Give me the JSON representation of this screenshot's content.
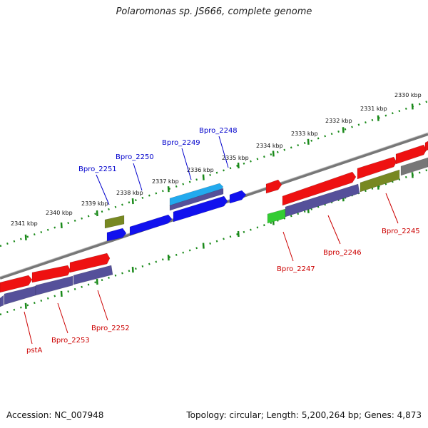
{
  "title": "Polaromonas sp. JS666, complete genome",
  "footer": {
    "accession": "Accession: NC_007948",
    "stats": "Topology: circular; Length: 5,200,264 bp; Genes: 4,873"
  },
  "colors": {
    "label_forward": "#0000cc",
    "label_reverse": "#cc0000",
    "cds_red": "#ee1111",
    "cds_blue": "#1111ee",
    "cds_cyan": "#22aaee",
    "cds_olive": "#778822",
    "cds_green": "#33cc33",
    "cds_slate": "#55509a",
    "dots": "#1a8a1a",
    "backbone": "#888888"
  },
  "kbp_labels": [
    "2330 kbp",
    "2331 kbp",
    "2332 kbp",
    "2333 kbp",
    "2334 kbp",
    "2335 kbp",
    "2336 kbp",
    "2337 kbp",
    "2338 kbp",
    "2339 kbp",
    "2340 kbp",
    "2341 kbp"
  ],
  "gene_labels_forward": [
    "Bpro_2248",
    "Bpro_2249",
    "Bpro_2250",
    "Bpro_2251"
  ],
  "gene_labels_reverse": [
    "Bpro_2245",
    "Bpro_2246",
    "Bpro_2247",
    "Bpro_2252",
    "Bpro_2253",
    "pstA"
  ]
}
